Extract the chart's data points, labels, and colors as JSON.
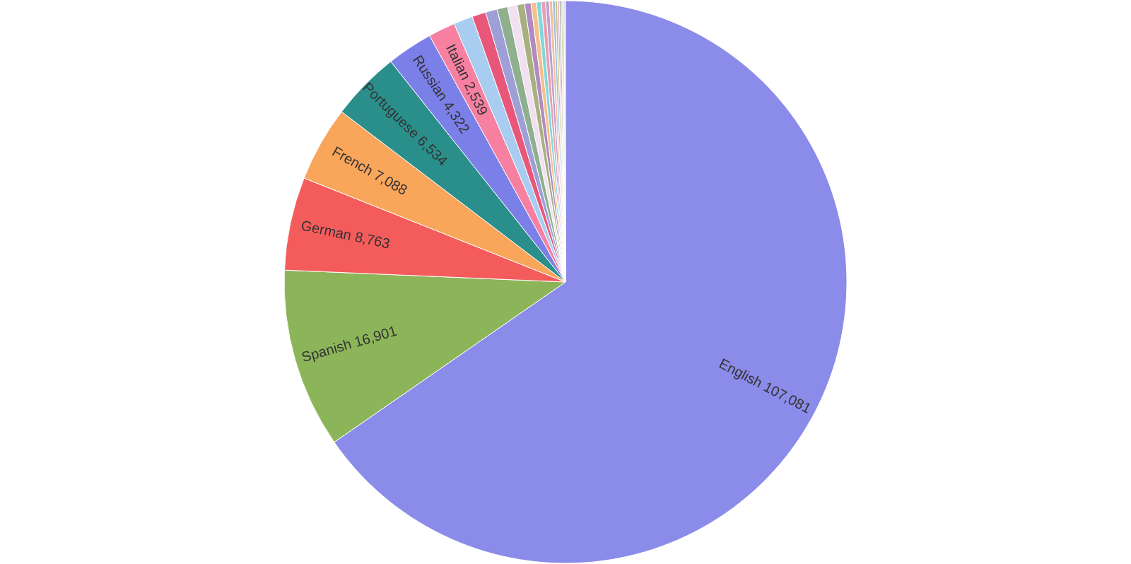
{
  "chart_data": {
    "type": "pie",
    "categories": [
      "English",
      "Spanish",
      "German",
      "French",
      "Portuguese",
      "Russian",
      "Italian",
      null,
      null,
      null,
      null,
      null,
      null,
      null,
      null,
      null,
      null,
      null,
      null,
      null,
      null,
      null,
      null,
      null,
      null,
      null
    ],
    "values": [
      107081,
      16901,
      8763,
      7088,
      6534,
      4322,
      2539,
      1800,
      1300,
      1100,
      1000,
      900,
      700,
      600,
      500,
      450,
      400,
      350,
      300,
      250,
      200,
      180,
      160,
      150,
      140,
      130
    ],
    "value_labels": [
      "107,081",
      "16,901",
      "8,763",
      "7,088",
      "6,534",
      "4,322",
      "2,539",
      null,
      null,
      null,
      null,
      null,
      null,
      null,
      null,
      null,
      null,
      null,
      null,
      null,
      null,
      null,
      null,
      null,
      null,
      null
    ],
    "colors": [
      "#8b8bea",
      "#8cb55a",
      "#f45c5c",
      "#f9a55a",
      "#2a8f8a",
      "#7b7fe8",
      "#f77fa0",
      "#a8cdf0",
      "#e8577a",
      "#9f9fd8",
      "#8fb08f",
      "#f0e0f0",
      "#a8b080",
      "#b08ac0",
      "#f5c08a",
      "#80d8e0",
      "#e8a0b0",
      "#c0a0d0",
      "#f0c0a0",
      "#a0c0e0",
      "#c0c080",
      "#e0b0c0",
      "#a0a0a0",
      "#d0d0a0",
      "#b0d0b0",
      "#c0b0e0"
    ]
  }
}
